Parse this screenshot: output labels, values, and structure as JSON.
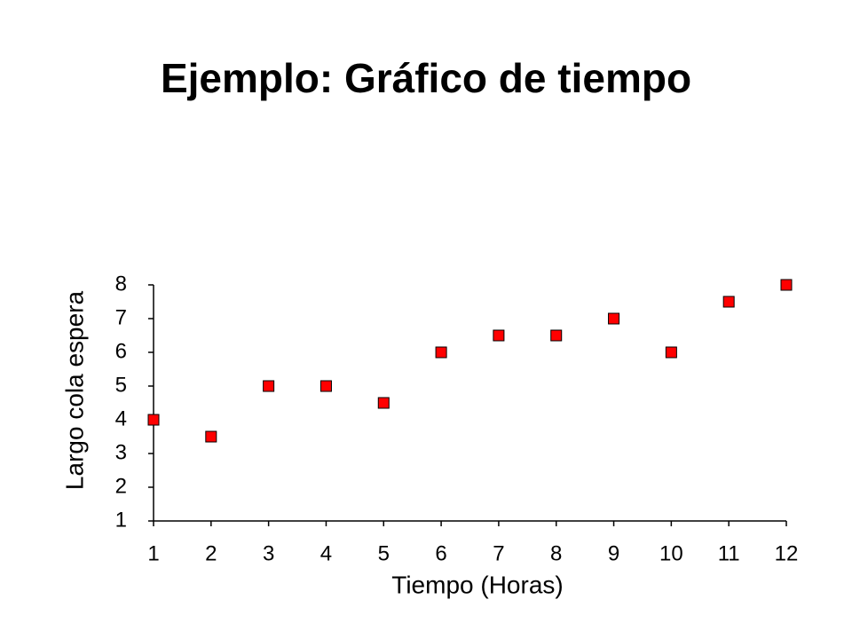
{
  "chart_data": {
    "type": "scatter",
    "title": "Ejemplo: Gráfico de tiempo",
    "x_label": "Tiempo (Horas)",
    "y_label": "Largo cola espera",
    "x": [
      1,
      2,
      3,
      4,
      5,
      6,
      7,
      8,
      9,
      10,
      11,
      12
    ],
    "values": [
      4,
      3.5,
      5,
      5,
      4.5,
      6,
      6.5,
      6.5,
      7,
      6,
      7.5,
      8
    ],
    "color": "#ff0000",
    "xlim": [
      1,
      12
    ],
    "xticks": [
      1,
      2,
      3,
      4,
      5,
      6,
      7,
      8,
      9,
      10,
      11,
      12
    ],
    "ylim": [
      1,
      8
    ],
    "yticks": [
      1,
      2,
      3,
      4,
      5,
      6,
      7,
      8
    ],
    "grid": false
  }
}
